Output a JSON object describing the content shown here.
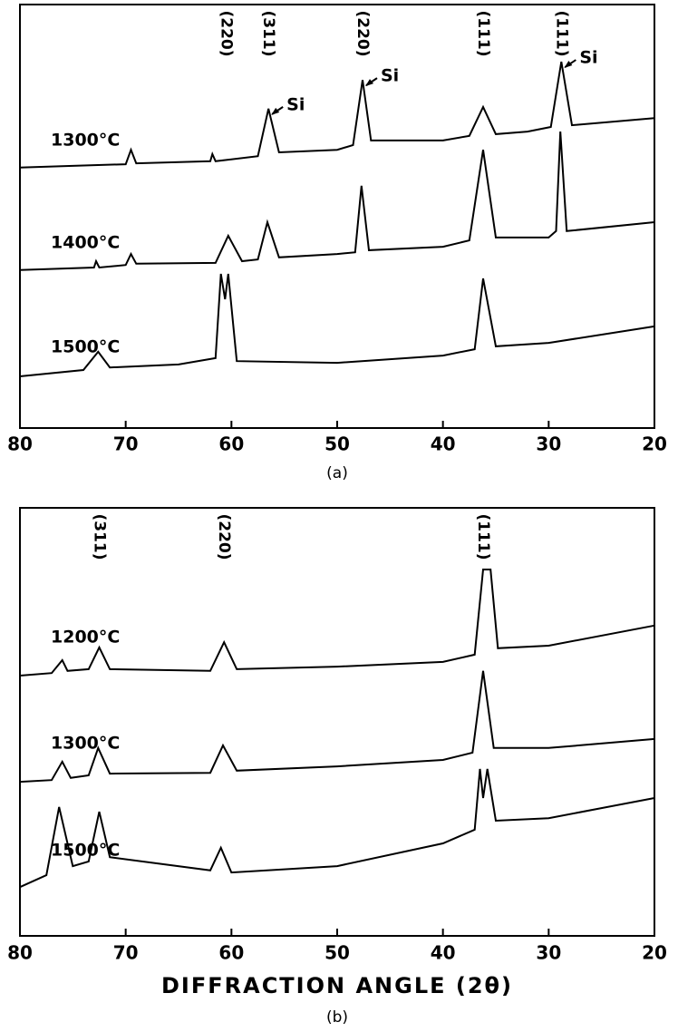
{
  "chart_data": [
    {
      "type": "line",
      "caption": "(a)",
      "xlim": [
        80,
        20
      ],
      "xticks": [
        80,
        70,
        60,
        50,
        40,
        30,
        20
      ],
      "ylim": [
        0,
        100
      ],
      "annotations": [
        {
          "text": "(220)",
          "x": 60.5
        },
        {
          "text": "(311)",
          "x": 56.5
        },
        {
          "text": "(220)",
          "x": 47.6
        },
        {
          "text": "(111)",
          "x": 36.2
        },
        {
          "text": "(111)",
          "x": 28.8
        }
      ],
      "si_labels": [
        {
          "text": "Si",
          "x": 56.5
        },
        {
          "text": "Si",
          "x": 47.6
        },
        {
          "text": "Si",
          "x": 28.8
        }
      ],
      "series": [
        {
          "name": "1300°C",
          "color": "#000",
          "x": [
            80,
            75,
            70,
            69.5,
            69,
            62,
            61.8,
            61.5,
            57.5,
            56.5,
            55.5,
            50,
            48.5,
            47.6,
            46.8,
            40,
            37.5,
            36.2,
            35,
            32,
            29.8,
            28.8,
            27.8,
            20
          ],
          "values": [
            61.5,
            61.9,
            62.3,
            65.7,
            62.5,
            63,
            64.7,
            63,
            64.2,
            75.4,
            65.1,
            65.7,
            66.8,
            82.2,
            67.9,
            67.9,
            69,
            75.8,
            69.4,
            70,
            71.1,
            86.5,
            71.5,
            73.2
          ]
        },
        {
          "name": "1400°C",
          "color": "#000",
          "x": [
            80,
            73,
            72.8,
            72.5,
            70,
            69.5,
            69,
            61.5,
            60.3,
            59,
            57.5,
            56.6,
            55.5,
            50,
            48.3,
            47.7,
            47,
            40,
            37.5,
            36.2,
            35,
            30,
            29.3,
            28.9,
            28.3,
            20
          ],
          "values": [
            37.3,
            37.9,
            39.4,
            37.9,
            38.5,
            41.1,
            38.8,
            39,
            45.4,
            39.4,
            39.8,
            48.6,
            40.3,
            41.1,
            41.5,
            57.2,
            42,
            42.8,
            44.3,
            65.7,
            45,
            45,
            46.5,
            70,
            46.5,
            48.6
          ]
        },
        {
          "name": "1500°C",
          "color": "#000",
          "x": [
            80,
            74,
            72.6,
            71.5,
            65,
            61.5,
            61,
            60.6,
            60.3,
            59.5,
            50,
            40,
            37,
            36.2,
            35,
            30,
            20
          ],
          "values": [
            12.2,
            13.7,
            18,
            14.3,
            15,
            16.5,
            36.4,
            30.4,
            36.4,
            15.8,
            15.4,
            17.1,
            18.6,
            35.3,
            19.3,
            20.1,
            24
          ]
        }
      ]
    },
    {
      "type": "line",
      "caption": "(b)",
      "x_label": "DIFFRACTION ANGLE (2θ)",
      "xlim": [
        80,
        20
      ],
      "xticks": [
        80,
        70,
        60,
        50,
        40,
        30,
        20
      ],
      "ylim": [
        0,
        100
      ],
      "annotations": [
        {
          "text": "(311)",
          "x": 72.5
        },
        {
          "text": "(220)",
          "x": 60.7
        },
        {
          "text": "(111)",
          "x": 36.2
        }
      ],
      "series": [
        {
          "name": "1200°C",
          "color": "#000",
          "x": [
            80,
            77,
            76,
            75.5,
            73.5,
            72.5,
            71.5,
            62,
            60.7,
            59.5,
            50,
            40,
            37,
            36.2,
            35.5,
            34.8,
            30,
            20
          ],
          "values": [
            60.8,
            61.4,
            64.4,
            61.9,
            62.3,
            67.4,
            62.3,
            61.9,
            68.6,
            62.3,
            62.9,
            64,
            65.7,
            85.6,
            85.6,
            67.2,
            67.8,
            72.5
          ]
        },
        {
          "name": "1300°C",
          "color": "#000",
          "x": [
            80,
            77,
            76,
            75.2,
            73.5,
            72.6,
            71.5,
            62,
            60.8,
            59.5,
            50,
            40,
            37.2,
            36.2,
            35.2,
            30,
            20
          ],
          "values": [
            36,
            36.4,
            40.7,
            36.9,
            37.5,
            43.9,
            37.9,
            38.1,
            44.5,
            38.6,
            39.6,
            41.1,
            42.8,
            61.9,
            43.9,
            43.9,
            46
          ]
        },
        {
          "name": "1500°C",
          "color": "#000",
          "x": [
            80,
            77.5,
            76.3,
            75,
            73.5,
            72.5,
            71.5,
            62,
            61,
            60,
            50,
            40,
            37,
            36.5,
            36.2,
            35.8,
            35,
            30,
            20
          ],
          "values": [
            11.4,
            14.2,
            30.1,
            16.3,
            17.4,
            29,
            18.4,
            15.3,
            20.6,
            14.8,
            16.3,
            21.6,
            24.8,
            39,
            32.2,
            39,
            26.9,
            27.5,
            32.2
          ]
        }
      ]
    }
  ]
}
